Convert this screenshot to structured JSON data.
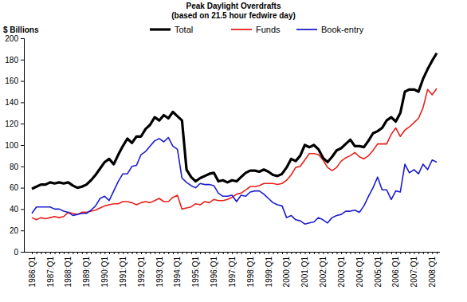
{
  "chart_data": {
    "type": "line",
    "title": "Peak Daylight Overdrafts",
    "subtitle": "(based on 21.5 hour fedwire day)",
    "y_label": "$ Billions",
    "legend": "top",
    "grid": false,
    "categories": [
      "1986:Q1",
      null,
      null,
      null,
      "1987:Q1",
      null,
      null,
      null,
      "1988:Q1",
      null,
      null,
      null,
      "1989:Q1",
      null,
      null,
      null,
      "1990:Q1",
      null,
      null,
      null,
      "1991:Q1",
      null,
      null,
      null,
      "1992:Q1",
      null,
      null,
      null,
      "1993:Q1",
      null,
      null,
      null,
      "1994:Q1",
      null,
      null,
      null,
      "1995:Q1",
      null,
      null,
      null,
      "1996:Q1",
      null,
      null,
      null,
      "1997:Q1",
      null,
      null,
      null,
      "1998:Q1",
      null,
      null,
      null,
      "1999:Q1",
      null,
      null,
      null,
      "2000:Q1",
      null,
      null,
      null,
      "2001:Q1",
      null,
      null,
      null,
      "2002:Q1",
      null,
      null,
      null,
      "2003:Q1",
      null,
      null,
      null,
      "2004:Q1",
      null,
      null,
      null,
      "2005:Q1",
      null,
      null,
      null,
      "2006:Q1",
      null,
      null,
      null,
      "2007:Q1",
      null,
      null,
      null,
      "2008:Q1",
      null
    ],
    "ylim": [
      0,
      200
    ],
    "yticks": [
      0,
      20,
      40,
      60,
      80,
      100,
      120,
      140,
      160,
      180,
      200
    ],
    "series": [
      {
        "name": "Total",
        "color": "#000000",
        "values": [
          59,
          61,
          63,
          63,
          65,
          64,
          65,
          64,
          65,
          62,
          60,
          61,
          63,
          67,
          72,
          78,
          84,
          87,
          82,
          91,
          99,
          106,
          102,
          108,
          108,
          115,
          119,
          126,
          123,
          128,
          125,
          131,
          127,
          123,
          77,
          70,
          66,
          69,
          71,
          73,
          74,
          66,
          67,
          65,
          67,
          66,
          70,
          74,
          76,
          76,
          75,
          77,
          75,
          72,
          71,
          73,
          79,
          87,
          85,
          90,
          100,
          98,
          100,
          96,
          88,
          84,
          89,
          95,
          97,
          101,
          105,
          99,
          99,
          98,
          104,
          111,
          113,
          116,
          123,
          126,
          122,
          130,
          150,
          152,
          152,
          150,
          162,
          171,
          179,
          186
        ]
      },
      {
        "name": "Funds",
        "color": "#e8211c",
        "values": [
          32,
          30,
          32,
          31,
          32,
          33,
          32,
          33,
          37,
          36,
          35,
          37,
          37,
          38,
          39,
          41,
          43,
          44,
          45,
          45,
          47,
          47,
          46,
          44,
          46,
          47,
          46,
          48,
          50,
          47,
          47,
          51,
          53,
          40,
          41,
          42,
          45,
          44,
          47,
          46,
          49,
          48,
          48,
          49,
          51,
          54,
          55,
          58,
          61,
          61,
          62,
          64,
          64,
          64,
          63,
          64,
          67,
          72,
          79,
          80,
          86,
          92,
          92,
          91,
          86,
          79,
          76,
          79,
          85,
          88,
          90,
          93,
          89,
          87,
          90,
          95,
          101,
          101,
          101,
          110,
          116,
          108,
          114,
          117,
          121,
          125,
          135,
          152,
          147,
          153
        ]
      },
      {
        "name": "Book-entry",
        "color": "#1c1cd0",
        "values": [
          36,
          42,
          42,
          42,
          42,
          40,
          40,
          38,
          37,
          34,
          35,
          36,
          36,
          39,
          43,
          50,
          52,
          48,
          57,
          66,
          73,
          73,
          80,
          81,
          91,
          94,
          99,
          104,
          106,
          103,
          107,
          99,
          96,
          69,
          65,
          62,
          60,
          64,
          63,
          63,
          62,
          55,
          52,
          52,
          53,
          47,
          53,
          52,
          56,
          57,
          57,
          54,
          50,
          46,
          44,
          43,
          32,
          34,
          30,
          29,
          26,
          27,
          28,
          32,
          30,
          27,
          32,
          34,
          35,
          38,
          38,
          39,
          37,
          43,
          52,
          60,
          70,
          58,
          58,
          49,
          57,
          56,
          82,
          74,
          77,
          73,
          82,
          77,
          86,
          84
        ]
      }
    ]
  }
}
